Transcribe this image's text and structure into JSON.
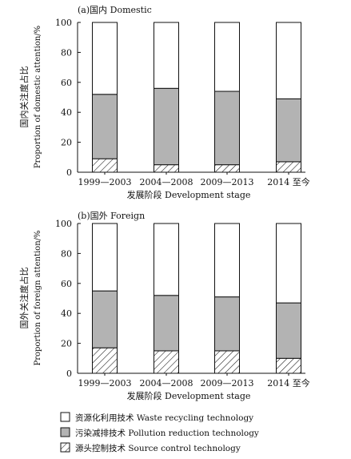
{
  "colors": {
    "stroke": "#111111",
    "waste": "#ffffff",
    "pollution": "#b3b3b3",
    "source": "hatch"
  },
  "chart_data": [
    {
      "type": "bar",
      "stacked": true,
      "title": "(a)国内 Domestic",
      "xlabel": "发展阶段 Development stage",
      "ylabel_cn": "国内关注度占比",
      "ylabel_en": "Proportion of domestic attention/%",
      "categories": [
        "1999—2003",
        "2004—2008",
        "2009—2013",
        "2014 至今"
      ],
      "ylim": [
        0,
        100
      ],
      "yticks": [
        0,
        20,
        40,
        60,
        80,
        100
      ],
      "series": [
        {
          "name": "源头控制技术 Source control technology",
          "key": "source",
          "values": [
            9,
            5,
            5,
            7
          ]
        },
        {
          "name": "污染减排技术 Pollution reduction technology",
          "key": "pollution",
          "values": [
            43,
            51,
            49,
            42
          ]
        },
        {
          "name": "资源化利用技术 Waste recycling technology",
          "key": "waste",
          "values": [
            48,
            44,
            46,
            51
          ]
        }
      ]
    },
    {
      "type": "bar",
      "stacked": true,
      "title": "(b)国外 Foreign",
      "xlabel": "发展阶段 Development stage",
      "ylabel_cn": "国外关注度占比",
      "ylabel_en": "Proportion of foreign attention/%",
      "categories": [
        "1999—2003",
        "2004—2008",
        "2009—2013",
        "2014 至今"
      ],
      "ylim": [
        0,
        100
      ],
      "yticks": [
        0,
        20,
        40,
        60,
        80,
        100
      ],
      "series": [
        {
          "name": "源头控制技术 Source control technology",
          "key": "source",
          "values": [
            17,
            15,
            15,
            10
          ]
        },
        {
          "name": "污染减排技术 Pollution reduction technology",
          "key": "pollution",
          "values": [
            38,
            37,
            36,
            37
          ]
        },
        {
          "name": "资源化利用技术 Waste recycling technology",
          "key": "waste",
          "values": [
            45,
            48,
            49,
            53
          ]
        }
      ]
    }
  ],
  "legend": [
    {
      "key": "waste",
      "label": "资源化利用技术 Waste recycling technology"
    },
    {
      "key": "pollution",
      "label": "污染减排技术 Pollution reduction technology"
    },
    {
      "key": "source",
      "label": "源头控制技术 Source control technology"
    }
  ]
}
